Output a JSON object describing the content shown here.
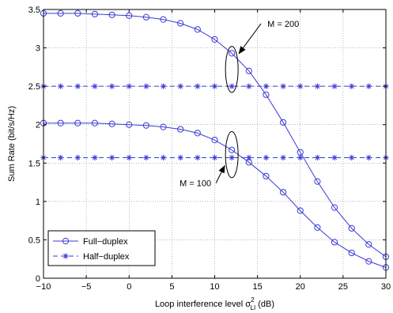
{
  "chart_data": {
    "type": "line",
    "title": "",
    "xlabel": "Loop interference level",
    "xlabel_sym": "σ",
    "xlabel_sub": "LI",
    "xlabel_sup": "2",
    "xlabel_unit": "(dB)",
    "ylabel": "Sum Rate (bit/s/Hz)",
    "xlim": [
      -10,
      30
    ],
    "ylim": [
      0,
      3.5
    ],
    "xticks": [
      -10,
      -5,
      0,
      5,
      10,
      15,
      20,
      25,
      30
    ],
    "yticks": [
      0,
      0.5,
      1,
      1.5,
      2,
      2.5,
      3,
      3.5
    ],
    "grid": true,
    "legend_position": "bottom-left",
    "legend": [
      {
        "label": "Full−duplex",
        "style": "solid-circle"
      },
      {
        "label": "Half−duplex",
        "style": "dashed-star"
      }
    ],
    "x": [
      -10,
      -8,
      -6,
      -4,
      -2,
      0,
      2,
      4,
      6,
      8,
      10,
      12,
      14,
      16,
      18,
      20,
      22,
      24,
      26,
      28,
      30
    ],
    "series": [
      {
        "group": "Full-duplex",
        "style": "solid-circle",
        "values": [
          3.45,
          3.45,
          3.45,
          3.44,
          3.43,
          3.42,
          3.4,
          3.37,
          3.32,
          3.24,
          3.11,
          2.93,
          2.7,
          2.39,
          2.03,
          1.64,
          1.26,
          0.92,
          0.65,
          0.44,
          0.28
        ]
      },
      {
        "group": "Full-duplex",
        "style": "solid-circle",
        "values": [
          2.02,
          2.02,
          2.02,
          2.02,
          2.01,
          2.0,
          1.99,
          1.97,
          1.94,
          1.89,
          1.8,
          1.67,
          1.51,
          1.33,
          1.12,
          0.88,
          0.66,
          0.47,
          0.33,
          0.22,
          0.14
        ]
      },
      {
        "group": "Half-duplex",
        "style": "dashed-star",
        "values": [
          2.5,
          2.5,
          2.5,
          2.5,
          2.5,
          2.5,
          2.5,
          2.5,
          2.5,
          2.5,
          2.5,
          2.5,
          2.5,
          2.5,
          2.5,
          2.5,
          2.5,
          2.5,
          2.5,
          2.5,
          2.5
        ]
      },
      {
        "group": "Half-duplex",
        "style": "dashed-star",
        "values": [
          1.57,
          1.57,
          1.57,
          1.57,
          1.57,
          1.57,
          1.57,
          1.57,
          1.57,
          1.57,
          1.57,
          1.57,
          1.57,
          1.57,
          1.57,
          1.57,
          1.57,
          1.57,
          1.57,
          1.57,
          1.57
        ]
      }
    ],
    "annotations": [
      {
        "text": "M = 200",
        "ellipse_x": 12,
        "ellipse_y": 2.72,
        "ellipse_dy": 0.3
      },
      {
        "text": "M = 100",
        "ellipse_x": 12,
        "ellipse_y": 1.61,
        "ellipse_dy": 0.3
      }
    ],
    "colors": {
      "line": "#3a3ad6",
      "frame": "#000000",
      "grid": "#8a8a8a",
      "background": "#ffffff"
    }
  }
}
